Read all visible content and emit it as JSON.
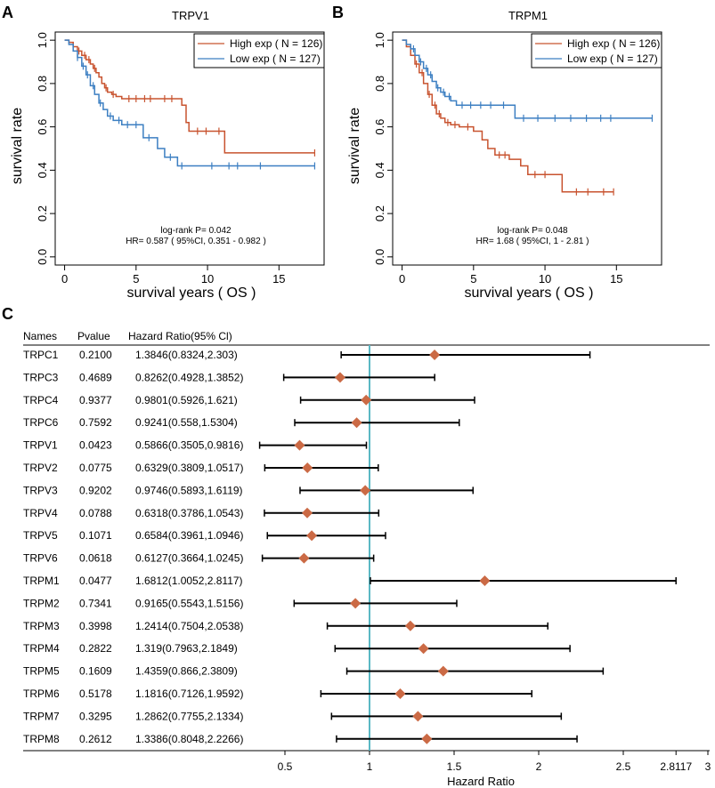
{
  "colors": {
    "high": "#c8532f",
    "low": "#3c7fc2",
    "reference_line": "#5bb8c4",
    "diamond": "#cb6a45",
    "axis": "#000000"
  },
  "chart_data": [
    {
      "panel_label": "A",
      "type": "line",
      "title": "TRPV1",
      "xlabel": "survival years ( OS   )",
      "ylabel": "survival rate",
      "xlim": [
        0,
        17.5
      ],
      "ylim": [
        0,
        1.0
      ],
      "xticks": [
        0,
        5,
        10,
        15
      ],
      "yticks": [
        0.0,
        0.2,
        0.4,
        0.6,
        0.8,
        1.0
      ],
      "legend": [
        "High exp ( N = 126)",
        "Low exp ( N = 127)"
      ],
      "legend_position": "top-right",
      "annotation": [
        "log-rank P= 0.042",
        "HR= 0.587 ( 95%CI, 0.351 - 0.982 )"
      ],
      "series": [
        {
          "name": "High exp",
          "x": [
            0,
            0.3,
            0.6,
            0.9,
            1.2,
            1.5,
            1.8,
            2.0,
            2.2,
            2.4,
            2.6,
            2.8,
            3.0,
            3.3,
            3.6,
            4.0,
            8.2,
            8.5,
            8.7,
            11.2,
            17.5
          ],
          "y": [
            1.0,
            0.99,
            0.97,
            0.95,
            0.93,
            0.91,
            0.89,
            0.87,
            0.85,
            0.83,
            0.8,
            0.78,
            0.76,
            0.75,
            0.74,
            0.73,
            0.7,
            0.62,
            0.58,
            0.48,
            0.48
          ],
          "censor_x": [
            1.0,
            1.4,
            1.7,
            2.1,
            2.9,
            3.4,
            4.5,
            5.0,
            5.6,
            6.0,
            7.0,
            7.5,
            9.3,
            9.9,
            10.8,
            17.5
          ]
        },
        {
          "name": "Low exp",
          "x": [
            0,
            0.3,
            0.6,
            0.9,
            1.2,
            1.5,
            1.8,
            2.1,
            2.4,
            2.7,
            3.0,
            3.4,
            4.0,
            5.5,
            6.5,
            7.0,
            7.9,
            17.5
          ],
          "y": [
            1.0,
            0.98,
            0.95,
            0.92,
            0.88,
            0.84,
            0.79,
            0.75,
            0.71,
            0.68,
            0.65,
            0.63,
            0.61,
            0.55,
            0.5,
            0.46,
            0.42,
            0.42
          ],
          "censor_x": [
            0.9,
            1.3,
            1.6,
            2.0,
            2.5,
            3.2,
            3.8,
            4.4,
            5.0,
            5.9,
            7.4,
            8.2,
            10.3,
            11.5,
            12.1,
            13.7,
            17.5
          ]
        }
      ]
    },
    {
      "panel_label": "B",
      "type": "line",
      "title": "TRPM1",
      "xlabel": "survival years ( OS   )",
      "ylabel": "survival rate",
      "xlim": [
        0,
        17.5
      ],
      "ylim": [
        0,
        1.0
      ],
      "xticks": [
        0,
        5,
        10,
        15
      ],
      "yticks": [
        0.0,
        0.2,
        0.4,
        0.6,
        0.8,
        1.0
      ],
      "legend": [
        "High exp ( N = 126)",
        "Low exp ( N = 127)"
      ],
      "legend_position": "top-right",
      "annotation": [
        "log-rank P= 0.048",
        "HR= 1.68 ( 95%CI, 1 - 2.81 )"
      ],
      "series": [
        {
          "name": "High exp",
          "x": [
            0,
            0.3,
            0.6,
            0.9,
            1.2,
            1.5,
            1.8,
            2.1,
            2.4,
            2.7,
            3.0,
            3.4,
            4.0,
            5.0,
            5.6,
            6.0,
            6.5,
            7.5,
            8.3,
            8.8,
            11.2,
            14.8
          ],
          "y": [
            1.0,
            0.97,
            0.93,
            0.89,
            0.85,
            0.8,
            0.75,
            0.7,
            0.66,
            0.64,
            0.62,
            0.61,
            0.6,
            0.58,
            0.54,
            0.5,
            0.47,
            0.45,
            0.42,
            0.38,
            0.3,
            0.3
          ],
          "censor_x": [
            1.0,
            1.4,
            1.9,
            2.3,
            2.6,
            3.2,
            3.7,
            4.6,
            6.8,
            7.2,
            9.3,
            10.0,
            12.2,
            13.0,
            14.1,
            14.8
          ]
        },
        {
          "name": "Low exp",
          "x": [
            0,
            0.3,
            0.6,
            0.9,
            1.2,
            1.5,
            1.8,
            2.1,
            2.4,
            2.7,
            3.0,
            3.4,
            3.8,
            7.9,
            17.5
          ],
          "y": [
            1.0,
            0.98,
            0.96,
            0.93,
            0.9,
            0.87,
            0.84,
            0.81,
            0.78,
            0.76,
            0.74,
            0.72,
            0.7,
            0.64,
            0.64
          ],
          "censor_x": [
            0.8,
            1.3,
            1.7,
            2.0,
            2.5,
            2.9,
            3.3,
            4.2,
            4.8,
            5.5,
            6.2,
            7.1,
            8.5,
            9.5,
            10.7,
            11.8,
            12.9,
            13.9,
            14.6,
            17.5
          ]
        }
      ]
    },
    {
      "panel_label": "C",
      "type": "forest",
      "column_headers": [
        "Names",
        "Pvalue",
        "Hazard Ratio(95% Cl)"
      ],
      "xlabel": "Hazard Ratio",
      "xtick_values": [
        0.5,
        1,
        1.5,
        2,
        2.5,
        2.8117,
        3
      ],
      "xtick_labels": [
        "0.5",
        "1",
        "1.5",
        "2",
        "2.5",
        "2.8117",
        "3"
      ],
      "xlim": [
        0.23,
        3.0
      ],
      "reference_line": 1,
      "rows": [
        {
          "name": "TRPC1",
          "pvalue": "0.2100",
          "label": "1.3846(0.8324,2.303)",
          "hr": 1.3846,
          "lo": 0.8324,
          "hi": 2.303
        },
        {
          "name": "TRPC3",
          "pvalue": "0.4689",
          "label": "0.8262(0.4928,1.3852)",
          "hr": 0.8262,
          "lo": 0.4928,
          "hi": 1.3852
        },
        {
          "name": "TRPC4",
          "pvalue": "0.9377",
          "label": "0.9801(0.5926,1.621)",
          "hr": 0.9801,
          "lo": 0.5926,
          "hi": 1.621
        },
        {
          "name": "TRPC6",
          "pvalue": "0.7592",
          "label": "0.9241(0.558,1.5304)",
          "hr": 0.9241,
          "lo": 0.558,
          "hi": 1.5304
        },
        {
          "name": "TRPV1",
          "pvalue": "0.0423",
          "label": "0.5866(0.3505,0.9816)",
          "hr": 0.5866,
          "lo": 0.3505,
          "hi": 0.9816
        },
        {
          "name": "TRPV2",
          "pvalue": "0.0775",
          "label": "0.6329(0.3809,1.0517)",
          "hr": 0.6329,
          "lo": 0.3809,
          "hi": 1.0517
        },
        {
          "name": "TRPV3",
          "pvalue": "0.9202",
          "label": "0.9746(0.5893,1.6119)",
          "hr": 0.9746,
          "lo": 0.5893,
          "hi": 1.6119
        },
        {
          "name": "TRPV4",
          "pvalue": "0.0788",
          "label": "0.6318(0.3786,1.0543)",
          "hr": 0.6318,
          "lo": 0.3786,
          "hi": 1.0543
        },
        {
          "name": "TRPV5",
          "pvalue": "0.1071",
          "label": "0.6584(0.3961,1.0946)",
          "hr": 0.6584,
          "lo": 0.3961,
          "hi": 1.0946
        },
        {
          "name": "TRPV6",
          "pvalue": "0.0618",
          "label": "0.6127(0.3664,1.0245)",
          "hr": 0.6127,
          "lo": 0.3664,
          "hi": 1.0245
        },
        {
          "name": "TRPM1",
          "pvalue": "0.0477",
          "label": "1.6812(1.0052,2.8117)",
          "hr": 1.6812,
          "lo": 1.0052,
          "hi": 2.8117
        },
        {
          "name": "TRPM2",
          "pvalue": "0.7341",
          "label": "0.9165(0.5543,1.5156)",
          "hr": 0.9165,
          "lo": 0.5543,
          "hi": 1.5156
        },
        {
          "name": "TRPM3",
          "pvalue": "0.3998",
          "label": "1.2414(0.7504,2.0538)",
          "hr": 1.2414,
          "lo": 0.7504,
          "hi": 2.0538
        },
        {
          "name": "TRPM4",
          "pvalue": "0.2822",
          "label": "1.319(0.7963,2.1849)",
          "hr": 1.319,
          "lo": 0.7963,
          "hi": 2.1849
        },
        {
          "name": "TRPM5",
          "pvalue": "0.1609",
          "label": "1.4359(0.866,2.3809)",
          "hr": 1.4359,
          "lo": 0.866,
          "hi": 2.3809
        },
        {
          "name": "TRPM6",
          "pvalue": "0.5178",
          "label": "1.1816(0.7126,1.9592)",
          "hr": 1.1816,
          "lo": 0.7126,
          "hi": 1.9592
        },
        {
          "name": "TRPM7",
          "pvalue": "0.3295",
          "label": "1.2862(0.7755,2.1334)",
          "hr": 1.2862,
          "lo": 0.7755,
          "hi": 2.1334
        },
        {
          "name": "TRPM8",
          "pvalue": "0.2612",
          "label": "1.3386(0.8048,2.2266)",
          "hr": 1.3386,
          "lo": 0.8048,
          "hi": 2.2266
        }
      ]
    }
  ]
}
